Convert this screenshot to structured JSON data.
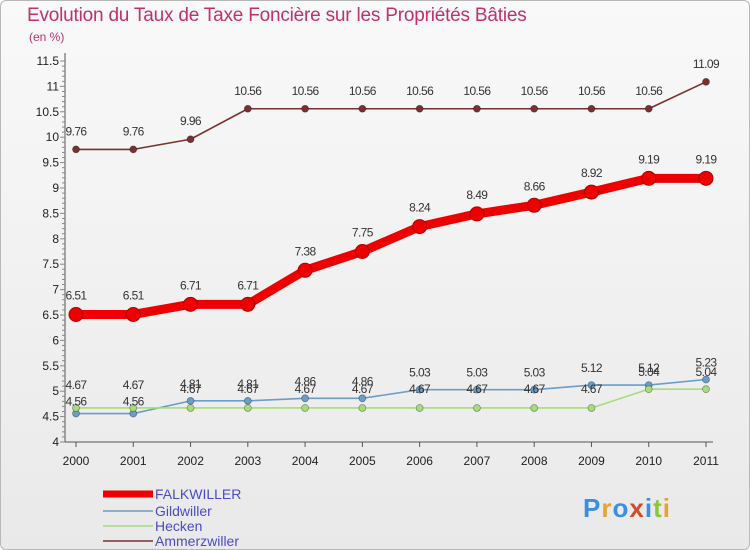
{
  "title": "Evolution du Taux de Taxe Foncière sur les Propriétés Bâties",
  "subtitle": "(en %)",
  "logo": {
    "text": "Proxiti",
    "letter_colors": [
      "#3c8fe0",
      "#e8a230",
      "#3c8fe0",
      "#d44a2a",
      "#3c8fe0",
      "#8cc63f",
      "#e8a230"
    ]
  },
  "chart_data": {
    "type": "line",
    "title": "Evolution du Taux de Taxe Foncière sur les Propriétés Bâties",
    "ylabel": "(en %)",
    "xlabel": "",
    "ylim": [
      4,
      11.5
    ],
    "yticks": [
      "4",
      "4.5",
      "5",
      "5.5",
      "6",
      "6.5",
      "7",
      "7.5",
      "8",
      "8.5",
      "9",
      "9.5",
      "10",
      "10.5",
      "11",
      "11.5"
    ],
    "categories": [
      "2000",
      "2001",
      "2002",
      "2003",
      "2004",
      "2005",
      "2006",
      "2007",
      "2008",
      "2009",
      "2010",
      "2011"
    ],
    "legend_position": "bottom-left",
    "series": [
      {
        "name": "FALKWILLER",
        "color": "#ee0000",
        "values": [
          6.51,
          6.51,
          6.71,
          6.71,
          7.38,
          7.75,
          8.24,
          8.49,
          8.66,
          8.92,
          9.19,
          9.19
        ],
        "labels": [
          "6.51",
          "6.51",
          "6.71",
          "6.71",
          "7.38",
          "7.75",
          "8.24",
          "8.49",
          "8.66",
          "8.92",
          "9.19",
          "9.19"
        ]
      },
      {
        "name": "Gildwiller",
        "color": "#6a9dc8",
        "values": [
          4.56,
          4.56,
          4.81,
          4.81,
          4.86,
          4.86,
          5.03,
          5.03,
          5.03,
          5.12,
          5.12,
          5.23
        ],
        "labels": [
          "4.56",
          "4.56",
          "4.81",
          "4.81",
          "4.86",
          "4.86",
          "5.03",
          "5.03",
          "5.03",
          "5.12",
          "5.12",
          "5.23"
        ]
      },
      {
        "name": "Hecken",
        "color": "#a6dc7c",
        "values": [
          4.67,
          4.67,
          4.67,
          4.67,
          4.67,
          4.67,
          4.67,
          4.67,
          4.67,
          4.67,
          5.04,
          5.04
        ],
        "labels": [
          "4.67",
          "4.67",
          "4.67",
          "4.67",
          "4.67",
          "4.67",
          "4.67",
          "4.67",
          "4.67",
          "4.67",
          "5.04",
          "5.04"
        ]
      },
      {
        "name": "Ammerzwiller",
        "color": "#7a3030",
        "values": [
          9.76,
          9.76,
          9.96,
          10.56,
          10.56,
          10.56,
          10.56,
          10.56,
          10.56,
          10.56,
          10.56,
          11.09
        ],
        "labels": [
          "9.76",
          "9.76",
          "9.96",
          "10.56",
          "10.56",
          "10.56",
          "10.56",
          "10.56",
          "10.56",
          "10.56",
          "10.56",
          "11.09"
        ]
      }
    ]
  }
}
